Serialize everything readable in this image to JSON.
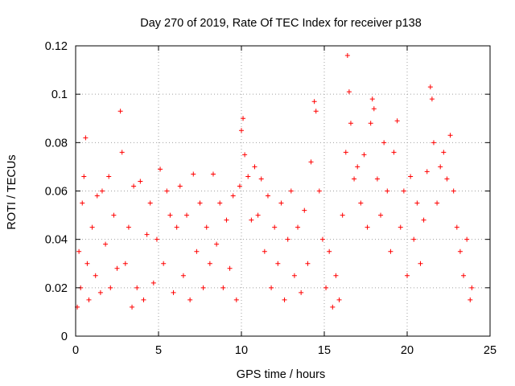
{
  "chart_data": {
    "type": "scatter",
    "title": "Day 270 of 2019, Rate Of TEC Index for receiver p138",
    "xlabel": "GPS time / hours",
    "ylabel": "ROTI / TECUs",
    "xlim": [
      0,
      25
    ],
    "ylim": [
      0,
      0.12
    ],
    "xticks": [
      0,
      5,
      10,
      15,
      20,
      25
    ],
    "xtick_labels": [
      "0",
      "5",
      "10",
      "15",
      "20",
      "25"
    ],
    "yticks": [
      0,
      0.02,
      0.04,
      0.06,
      0.08,
      0.1,
      0.12
    ],
    "ytick_labels": [
      "0",
      "0.02",
      "0.04",
      "0.06",
      "0.08",
      "0.1",
      "0.12"
    ],
    "grid": true,
    "marker": "+",
    "color": "#ff0000",
    "series": [
      {
        "name": "ROTI",
        "points": [
          [
            0.1,
            0.012
          ],
          [
            0.2,
            0.035
          ],
          [
            0.3,
            0.02
          ],
          [
            0.4,
            0.055
          ],
          [
            0.5,
            0.066
          ],
          [
            0.6,
            0.082
          ],
          [
            0.7,
            0.03
          ],
          [
            0.8,
            0.015
          ],
          [
            1.0,
            0.045
          ],
          [
            1.2,
            0.025
          ],
          [
            1.3,
            0.058
          ],
          [
            1.5,
            0.018
          ],
          [
            1.6,
            0.06
          ],
          [
            1.8,
            0.038
          ],
          [
            2.0,
            0.066
          ],
          [
            2.1,
            0.02
          ],
          [
            2.3,
            0.05
          ],
          [
            2.5,
            0.028
          ],
          [
            2.7,
            0.093
          ],
          [
            2.8,
            0.076
          ],
          [
            3.0,
            0.03
          ],
          [
            3.2,
            0.045
          ],
          [
            3.4,
            0.012
          ],
          [
            3.5,
            0.062
          ],
          [
            3.7,
            0.02
          ],
          [
            3.9,
            0.064
          ],
          [
            4.1,
            0.015
          ],
          [
            4.3,
            0.042
          ],
          [
            4.5,
            0.055
          ],
          [
            4.7,
            0.022
          ],
          [
            4.9,
            0.04
          ],
          [
            5.1,
            0.069
          ],
          [
            5.3,
            0.03
          ],
          [
            5.5,
            0.06
          ],
          [
            5.7,
            0.05
          ],
          [
            5.9,
            0.018
          ],
          [
            6.1,
            0.045
          ],
          [
            6.3,
            0.062
          ],
          [
            6.5,
            0.025
          ],
          [
            6.7,
            0.05
          ],
          [
            6.9,
            0.015
          ],
          [
            7.1,
            0.067
          ],
          [
            7.3,
            0.035
          ],
          [
            7.5,
            0.055
          ],
          [
            7.7,
            0.02
          ],
          [
            7.9,
            0.045
          ],
          [
            8.1,
            0.03
          ],
          [
            8.3,
            0.067
          ],
          [
            8.5,
            0.038
          ],
          [
            8.7,
            0.055
          ],
          [
            8.9,
            0.02
          ],
          [
            9.1,
            0.048
          ],
          [
            9.3,
            0.028
          ],
          [
            9.5,
            0.058
          ],
          [
            9.7,
            0.015
          ],
          [
            9.9,
            0.062
          ],
          [
            10.0,
            0.085
          ],
          [
            10.1,
            0.09
          ],
          [
            10.2,
            0.075
          ],
          [
            10.4,
            0.066
          ],
          [
            10.6,
            0.048
          ],
          [
            10.8,
            0.07
          ],
          [
            11.0,
            0.05
          ],
          [
            11.2,
            0.065
          ],
          [
            11.4,
            0.035
          ],
          [
            11.6,
            0.058
          ],
          [
            11.8,
            0.02
          ],
          [
            12.0,
            0.045
          ],
          [
            12.2,
            0.03
          ],
          [
            12.4,
            0.055
          ],
          [
            12.6,
            0.015
          ],
          [
            12.8,
            0.04
          ],
          [
            13.0,
            0.06
          ],
          [
            13.2,
            0.025
          ],
          [
            13.4,
            0.045
          ],
          [
            13.6,
            0.018
          ],
          [
            13.8,
            0.052
          ],
          [
            14.0,
            0.03
          ],
          [
            14.2,
            0.072
          ],
          [
            14.4,
            0.097
          ],
          [
            14.5,
            0.093
          ],
          [
            14.7,
            0.06
          ],
          [
            14.9,
            0.04
          ],
          [
            15.1,
            0.02
          ],
          [
            15.3,
            0.035
          ],
          [
            15.5,
            0.012
          ],
          [
            15.7,
            0.025
          ],
          [
            15.9,
            0.015
          ],
          [
            16.1,
            0.05
          ],
          [
            16.3,
            0.076
          ],
          [
            16.4,
            0.116
          ],
          [
            16.5,
            0.101
          ],
          [
            16.6,
            0.088
          ],
          [
            16.8,
            0.065
          ],
          [
            17.0,
            0.07
          ],
          [
            17.2,
            0.055
          ],
          [
            17.4,
            0.075
          ],
          [
            17.6,
            0.045
          ],
          [
            17.8,
            0.088
          ],
          [
            17.9,
            0.098
          ],
          [
            18.0,
            0.094
          ],
          [
            18.2,
            0.065
          ],
          [
            18.4,
            0.05
          ],
          [
            18.6,
            0.08
          ],
          [
            18.8,
            0.06
          ],
          [
            19.0,
            0.035
          ],
          [
            19.2,
            0.076
          ],
          [
            19.4,
            0.089
          ],
          [
            19.6,
            0.045
          ],
          [
            19.8,
            0.06
          ],
          [
            20.0,
            0.025
          ],
          [
            20.2,
            0.066
          ],
          [
            20.4,
            0.04
          ],
          [
            20.6,
            0.055
          ],
          [
            20.8,
            0.03
          ],
          [
            21.0,
            0.048
          ],
          [
            21.2,
            0.068
          ],
          [
            21.4,
            0.103
          ],
          [
            21.5,
            0.098
          ],
          [
            21.6,
            0.08
          ],
          [
            21.8,
            0.055
          ],
          [
            22.0,
            0.07
          ],
          [
            22.2,
            0.076
          ],
          [
            22.4,
            0.065
          ],
          [
            22.6,
            0.083
          ],
          [
            22.8,
            0.06
          ],
          [
            23.0,
            0.045
          ],
          [
            23.2,
            0.035
          ],
          [
            23.4,
            0.025
          ],
          [
            23.6,
            0.04
          ],
          [
            23.8,
            0.015
          ],
          [
            23.9,
            0.02
          ]
        ]
      }
    ]
  }
}
